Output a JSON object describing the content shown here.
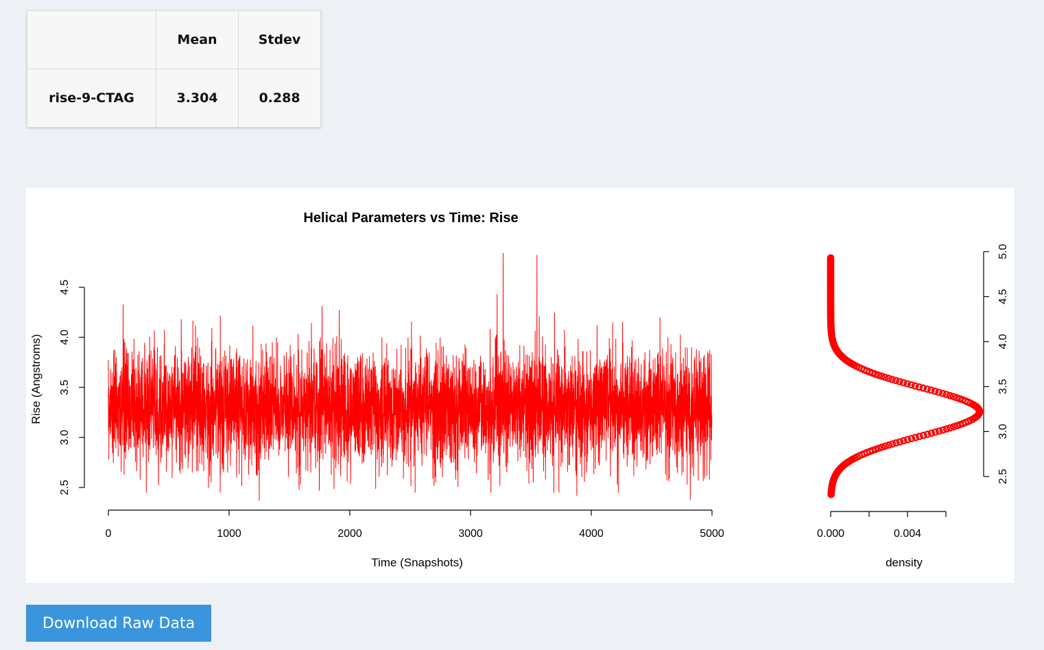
{
  "stats_table": {
    "headers": [
      "",
      "Mean",
      "Stdev"
    ],
    "rows": [
      {
        "label": "rise-9-CTAG",
        "mean": "3.304",
        "stdev": "0.288"
      }
    ]
  },
  "download_button": {
    "label": "Download Raw Data"
  },
  "colors": {
    "series": "#ff0000",
    "button": "#3a95dd",
    "page_background": "#edf1f6"
  },
  "chart_data": [
    {
      "type": "line",
      "title": "Helical Parameters vs Time: Rise",
      "xlabel": "Time (Snapshots)",
      "ylabel": "Rise (Angstroms)",
      "xlim": [
        0,
        5000
      ],
      "ylim": [
        2.5,
        4.5
      ],
      "xticks": [
        "0",
        "1000",
        "2000",
        "3000",
        "4000",
        "5000"
      ],
      "yticks": [
        "2.5",
        "3.0",
        "3.5",
        "4.0",
        "4.5"
      ],
      "grid": false,
      "series": [
        {
          "color": "#ff0000",
          "summary": {
            "n_snapshots": 5000,
            "mean": 3.304,
            "stdev": 0.288,
            "min": 2.37,
            "max": 4.84
          },
          "spikes": [
            {
              "x": 1250,
              "y": 2.37
            },
            {
              "x": 3270,
              "y": 4.84
            },
            {
              "x": 3550,
              "y": 4.82
            },
            {
              "x": 3220,
              "y": 4.43
            },
            {
              "x": 1770,
              "y": 4.31
            },
            {
              "x": 4820,
              "y": 2.38
            },
            {
              "x": 3880,
              "y": 2.42
            }
          ]
        }
      ]
    },
    {
      "type": "line",
      "title": "",
      "xlabel": "density",
      "ylabel": "",
      "xlim": [
        0,
        0.006
      ],
      "ylim": [
        2.2,
        5.0
      ],
      "xticks": [
        "0.000",
        "0.004"
      ],
      "yticks": [
        "2.5",
        "3.0",
        "3.5",
        "4.0",
        "4.5",
        "5.0"
      ],
      "axis_side": "right",
      "grid": false,
      "series": [
        {
          "color": "#ff0000",
          "distribution": "normal",
          "center": 3.22,
          "peak_density": 0.00775,
          "ymin": 2.3,
          "ymax": 4.93
        }
      ]
    }
  ]
}
